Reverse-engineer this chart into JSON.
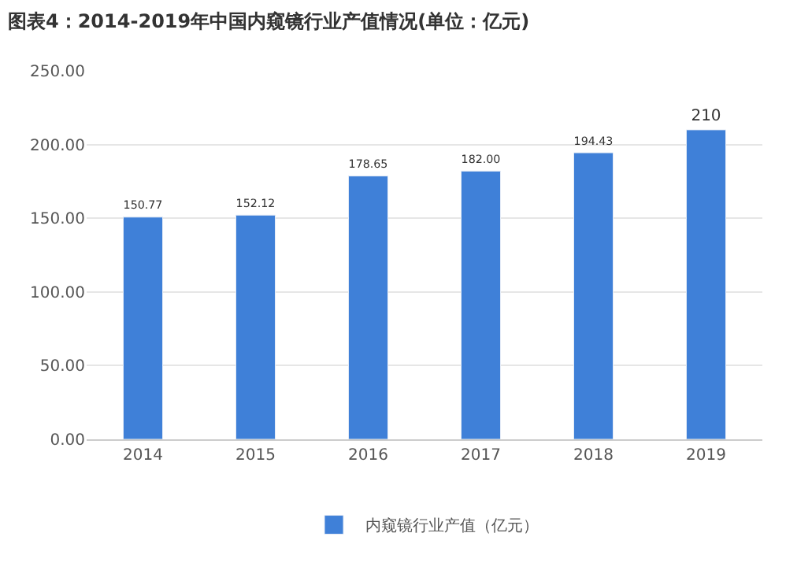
{
  "chart_data": {
    "type": "bar",
    "title": "图表4：2014-2019年中国内窥镜行业产值情况(单位：亿元)",
    "categories": [
      "2014",
      "2015",
      "2016",
      "2017",
      "2018",
      "2019"
    ],
    "series": [
      {
        "name": "内窥镜行业产值（亿元）",
        "color": "#3f80d8",
        "values": [
          150.77,
          152.12,
          178.65,
          182.0,
          194.43,
          210
        ]
      }
    ],
    "value_labels": [
      "150.77",
      "152.12",
      "178.65",
      "182.00",
      "194.43",
      "210"
    ],
    "ylim": [
      0,
      250
    ],
    "yticks": [
      {
        "value": 0,
        "label": "0.00"
      },
      {
        "value": 50,
        "label": "50.00"
      },
      {
        "value": 100,
        "label": "100.00"
      },
      {
        "value": 150,
        "label": "150.00"
      },
      {
        "value": 200,
        "label": "200.00"
      },
      {
        "value": 250,
        "label": "250.00"
      }
    ],
    "grid": "y",
    "legend": "bottom"
  }
}
